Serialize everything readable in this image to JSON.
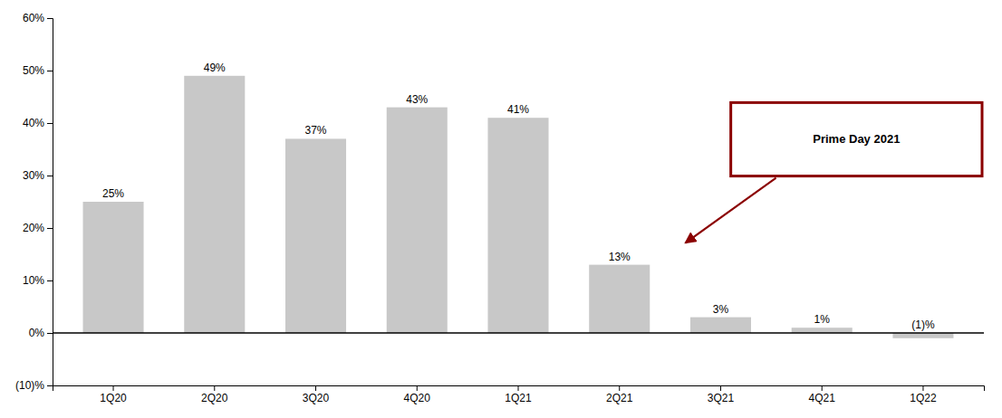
{
  "chart_data": {
    "type": "bar",
    "categories": [
      "1Q20",
      "2Q20",
      "3Q20",
      "4Q20",
      "1Q21",
      "2Q21",
      "3Q21",
      "4Q21",
      "1Q22"
    ],
    "values": [
      25,
      49,
      37,
      43,
      41,
      13,
      3,
      1,
      -1
    ],
    "value_labels": [
      "25%",
      "49%",
      "37%",
      "43%",
      "41%",
      "13%",
      "3%",
      "1%",
      "(1)%"
    ],
    "data_labels": true,
    "color": "#c8c8c8",
    "ylim": [
      -10,
      60
    ],
    "yticks": [
      {
        "value": -10,
        "label": "(10)%"
      },
      {
        "value": 0,
        "label": "0%"
      },
      {
        "value": 10,
        "label": "10%"
      },
      {
        "value": 20,
        "label": "20%"
      },
      {
        "value": 30,
        "label": "30%"
      },
      {
        "value": 40,
        "label": "40%"
      },
      {
        "value": 50,
        "label": "50%"
      },
      {
        "value": 60,
        "label": "60%"
      }
    ],
    "grid": false,
    "annotations": [
      {
        "text": "Prime Day 2021",
        "category": "2Q21",
        "color": "#8b0000"
      }
    ]
  }
}
